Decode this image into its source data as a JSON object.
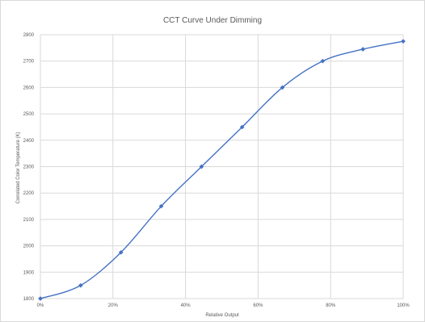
{
  "chart_data": {
    "type": "line",
    "title": "CCT Curve Under Dimming",
    "xlabel": "Relative Output",
    "ylabel": "Correlated Color Temperature (K)",
    "x": [
      0,
      11.1,
      22.2,
      33.3,
      44.4,
      55.6,
      66.7,
      77.8,
      88.9,
      100
    ],
    "series": [
      {
        "values": [
          1800,
          1850,
          1975,
          2150,
          2300,
          2450,
          2600,
          2700,
          2745,
          2775
        ]
      }
    ],
    "xlim": [
      0,
      100
    ],
    "ylim": [
      1800,
      2800
    ],
    "x_ticks": [
      0,
      20,
      40,
      60,
      80,
      100
    ],
    "x_tick_labels": [
      "0%",
      "20%",
      "40%",
      "60%",
      "80%",
      "100%"
    ],
    "y_ticks": [
      1800,
      1900,
      2000,
      2100,
      2200,
      2300,
      2400,
      2500,
      2600,
      2700,
      2800
    ],
    "y_tick_labels": [
      "1800",
      "1900",
      "2000",
      "2100",
      "2200",
      "2300",
      "2400",
      "2500",
      "2600",
      "2700",
      "2800"
    ],
    "grid": true,
    "legend": "none",
    "colors": {
      "series": "#4472c4",
      "grid": "#d9d9d9",
      "text": "#595959"
    }
  }
}
